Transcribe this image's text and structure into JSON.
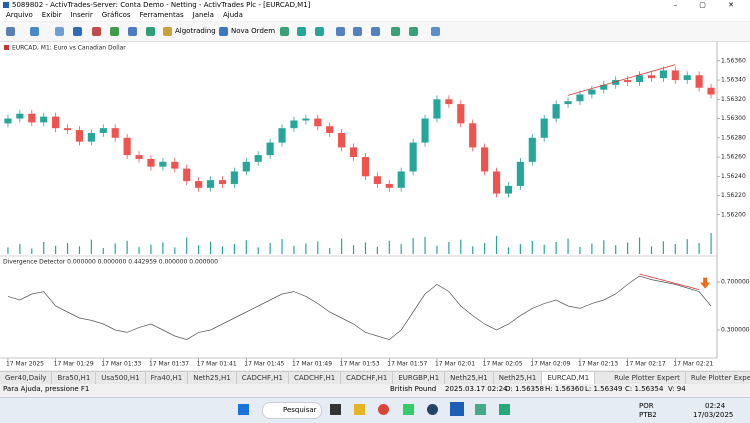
{
  "window": {
    "title": "5089802 - ActivTrades-Server: Conta Demo - Netting - ActivTrades Plc - [EURCAD,M1]",
    "menu": [
      "Arquivo",
      "Exibir",
      "Inserir",
      "Gráficos",
      "Ferramentas",
      "Janela",
      "Ajuda"
    ],
    "toolbar": [
      "Algotrading",
      "Nova Ordem"
    ]
  },
  "chart_data": {
    "type": "candlestick",
    "title": "EURCAD, M1: Euro vs Canadian Dollar",
    "categories": [
      "17 Mar 2025",
      null,
      null,
      null,
      "17 Mar 01:29",
      null,
      null,
      null,
      "17 Mar 01:33",
      null,
      null,
      null,
      "17 Mar 01:37",
      null,
      null,
      null,
      "17 Mar 01:41",
      null,
      null,
      null,
      "17 Mar 01:45",
      null,
      null,
      null,
      "17 Mar 01:49",
      null,
      null,
      null,
      "17 Mar 01:53",
      null,
      null,
      null,
      "17 Mar 01:57",
      null,
      null,
      null,
      "17 Mar 02:01",
      null,
      null,
      null,
      "17 Mar 02:05",
      null,
      null,
      null,
      "17 Mar 02:09",
      null,
      null,
      null,
      "17 Mar 02:13",
      null,
      null,
      null,
      "17 Mar 02:17",
      null,
      null,
      null,
      "17 Mar 02:21",
      null,
      null,
      null
    ],
    "open": [
      1.56295,
      1.563,
      1.56305,
      1.56296,
      1.56302,
      1.5629,
      1.56288,
      1.56276,
      1.56285,
      1.5629,
      1.5628,
      1.56262,
      1.56258,
      1.5625,
      1.56255,
      1.56248,
      1.56235,
      1.56228,
      1.56236,
      1.56232,
      1.56245,
      1.56255,
      1.56262,
      1.56275,
      1.5629,
      1.56298,
      1.563,
      1.56292,
      1.56285,
      1.5627,
      1.5626,
      1.5624,
      1.56232,
      1.56228,
      1.56245,
      1.56275,
      1.563,
      1.5632,
      1.56315,
      1.56295,
      1.5627,
      1.56245,
      1.56222,
      1.5623,
      1.56255,
      1.5628,
      1.563,
      1.56315,
      1.56318,
      1.56325,
      1.5633,
      1.56335,
      1.5634,
      1.56338,
      1.56345,
      1.56342,
      1.5635,
      1.5634,
      1.56345,
      1.56332
    ],
    "high": [
      1.56304,
      1.56309,
      1.56309,
      1.56306,
      1.56306,
      1.56294,
      1.56292,
      1.56289,
      1.56294,
      1.56294,
      1.56284,
      1.56266,
      1.56262,
      1.56259,
      1.56259,
      1.56252,
      1.56239,
      1.5624,
      1.5624,
      1.56249,
      1.56259,
      1.56266,
      1.56279,
      1.56294,
      1.56302,
      1.56304,
      1.56304,
      1.56296,
      1.56289,
      1.56274,
      1.56264,
      1.56244,
      1.56236,
      1.56249,
      1.56279,
      1.56304,
      1.56324,
      1.56324,
      1.56319,
      1.56299,
      1.56274,
      1.56249,
      1.56234,
      1.56259,
      1.56284,
      1.56304,
      1.56319,
      1.56322,
      1.56329,
      1.56334,
      1.56339,
      1.56344,
      1.56344,
      1.56349,
      1.56349,
      1.56354,
      1.56354,
      1.56349,
      1.56349,
      1.56336
    ],
    "low": [
      1.56291,
      1.56296,
      1.56292,
      1.56292,
      1.56286,
      1.56284,
      1.56272,
      1.56272,
      1.56281,
      1.56276,
      1.56258,
      1.56254,
      1.56246,
      1.56246,
      1.56244,
      1.56231,
      1.56224,
      1.56224,
      1.56228,
      1.56228,
      1.56241,
      1.56251,
      1.56258,
      1.56271,
      1.56286,
      1.56294,
      1.56288,
      1.56281,
      1.56266,
      1.56256,
      1.56236,
      1.56228,
      1.56224,
      1.56224,
      1.56241,
      1.56271,
      1.56296,
      1.56311,
      1.56291,
      1.56266,
      1.56241,
      1.56218,
      1.56218,
      1.56226,
      1.56251,
      1.56276,
      1.56296,
      1.56311,
      1.56314,
      1.56321,
      1.56326,
      1.56331,
      1.56334,
      1.56334,
      1.56338,
      1.56338,
      1.56336,
      1.56336,
      1.56328,
      1.56321
    ],
    "close": [
      1.563,
      1.56305,
      1.56296,
      1.56302,
      1.5629,
      1.56288,
      1.56276,
      1.56285,
      1.5629,
      1.5628,
      1.56262,
      1.56258,
      1.5625,
      1.56255,
      1.56248,
      1.56235,
      1.56228,
      1.56236,
      1.56232,
      1.56245,
      1.56255,
      1.56262,
      1.56275,
      1.5629,
      1.56298,
      1.563,
      1.56292,
      1.56285,
      1.5627,
      1.5626,
      1.5624,
      1.56232,
      1.56228,
      1.56245,
      1.56275,
      1.563,
      1.5632,
      1.56315,
      1.56295,
      1.5627,
      1.56245,
      1.56222,
      1.5623,
      1.56255,
      1.5628,
      1.563,
      1.56315,
      1.56318,
      1.56325,
      1.5633,
      1.56335,
      1.5634,
      1.56338,
      1.56345,
      1.56342,
      1.5635,
      1.5634,
      1.56345,
      1.56332,
      1.56325
    ],
    "volume": [
      12,
      18,
      10,
      22,
      15,
      20,
      14,
      26,
      11,
      19,
      24,
      13,
      17,
      21,
      12,
      30,
      16,
      22,
      14,
      18,
      25,
      12,
      20,
      27,
      15,
      19,
      23,
      11,
      28,
      16,
      21,
      13,
      24,
      18,
      29,
      31,
      15,
      22,
      26,
      14,
      20,
      33,
      12,
      18,
      24,
      17,
      22,
      28,
      13,
      19,
      25,
      16,
      21,
      30,
      14,
      23,
      18,
      27,
      20,
      38
    ],
    "up_color": "#26a69a",
    "down_color": "#ef5350",
    "volume_color": "#26a69a",
    "ylim": [
      1.5618,
      1.56365
    ],
    "yticks": [
      {
        "value": 1.562,
        "label": "1.56200"
      },
      {
        "value": 1.5622,
        "label": "1.56220"
      },
      {
        "value": 1.5624,
        "label": "1.56240"
      },
      {
        "value": 1.5626,
        "label": "1.56260"
      },
      {
        "value": 1.5628,
        "label": "1.56280"
      },
      {
        "value": 1.563,
        "label": "1.56300"
      },
      {
        "value": 1.5632,
        "label": "1.56320"
      },
      {
        "value": 1.5634,
        "label": "1.56340"
      },
      {
        "value": 1.5636,
        "label": "1.56360"
      }
    ],
    "indicator": {
      "title": "Divergence Detector 0.000000 0.000000 0.442959 0.000000 0.000000",
      "color": "#555555",
      "values": [
        0.58,
        0.55,
        0.6,
        0.62,
        0.5,
        0.45,
        0.4,
        0.38,
        0.35,
        0.3,
        0.28,
        0.32,
        0.35,
        0.3,
        0.25,
        0.22,
        0.28,
        0.3,
        0.35,
        0.4,
        0.45,
        0.5,
        0.55,
        0.6,
        0.62,
        0.58,
        0.52,
        0.45,
        0.4,
        0.35,
        0.28,
        0.25,
        0.22,
        0.3,
        0.45,
        0.6,
        0.68,
        0.62,
        0.5,
        0.42,
        0.35,
        0.3,
        0.35,
        0.42,
        0.48,
        0.52,
        0.55,
        0.5,
        0.48,
        0.52,
        0.55,
        0.6,
        0.68,
        0.75,
        0.72,
        0.7,
        0.68,
        0.65,
        0.62,
        0.5
      ],
      "ylim": [
        0.1,
        0.9
      ],
      "yticks": [
        {
          "value": 0.7,
          "label": "0.700000"
        },
        {
          "value": 0.3,
          "label": "0.300000"
        }
      ]
    }
  },
  "tabs": [
    "Ger40,Daily",
    "Bra50,H1",
    "Usa500,H1",
    "Fra40,H1",
    "Neth25,H1",
    "CADCHF,H1",
    "CADCHF,H1",
    "CADCHF,H1",
    "EURGBP,H1",
    "Neth25,H1",
    "Neth25,H1",
    "EURCAD,M1"
  ],
  "active_tab": "EURCAD,M1",
  "experts": [
    "Rule Plotter Expert",
    "Rule Plotter Expert"
  ],
  "status": {
    "help": "Para Ajuda, pressione F1",
    "profile": "British Pound",
    "time": "2025.03.17 02:24",
    "open": "O: 1.56358",
    "high": "H: 1.56360",
    "low": "L: 1.56349",
    "close": "C: 1.56354",
    "volume": "V: 94"
  },
  "taskbar": {
    "search": "Pesquisar",
    "lang": "POR",
    "layout": "PTB2",
    "time": "02:24",
    "date": "17/03/2025"
  }
}
